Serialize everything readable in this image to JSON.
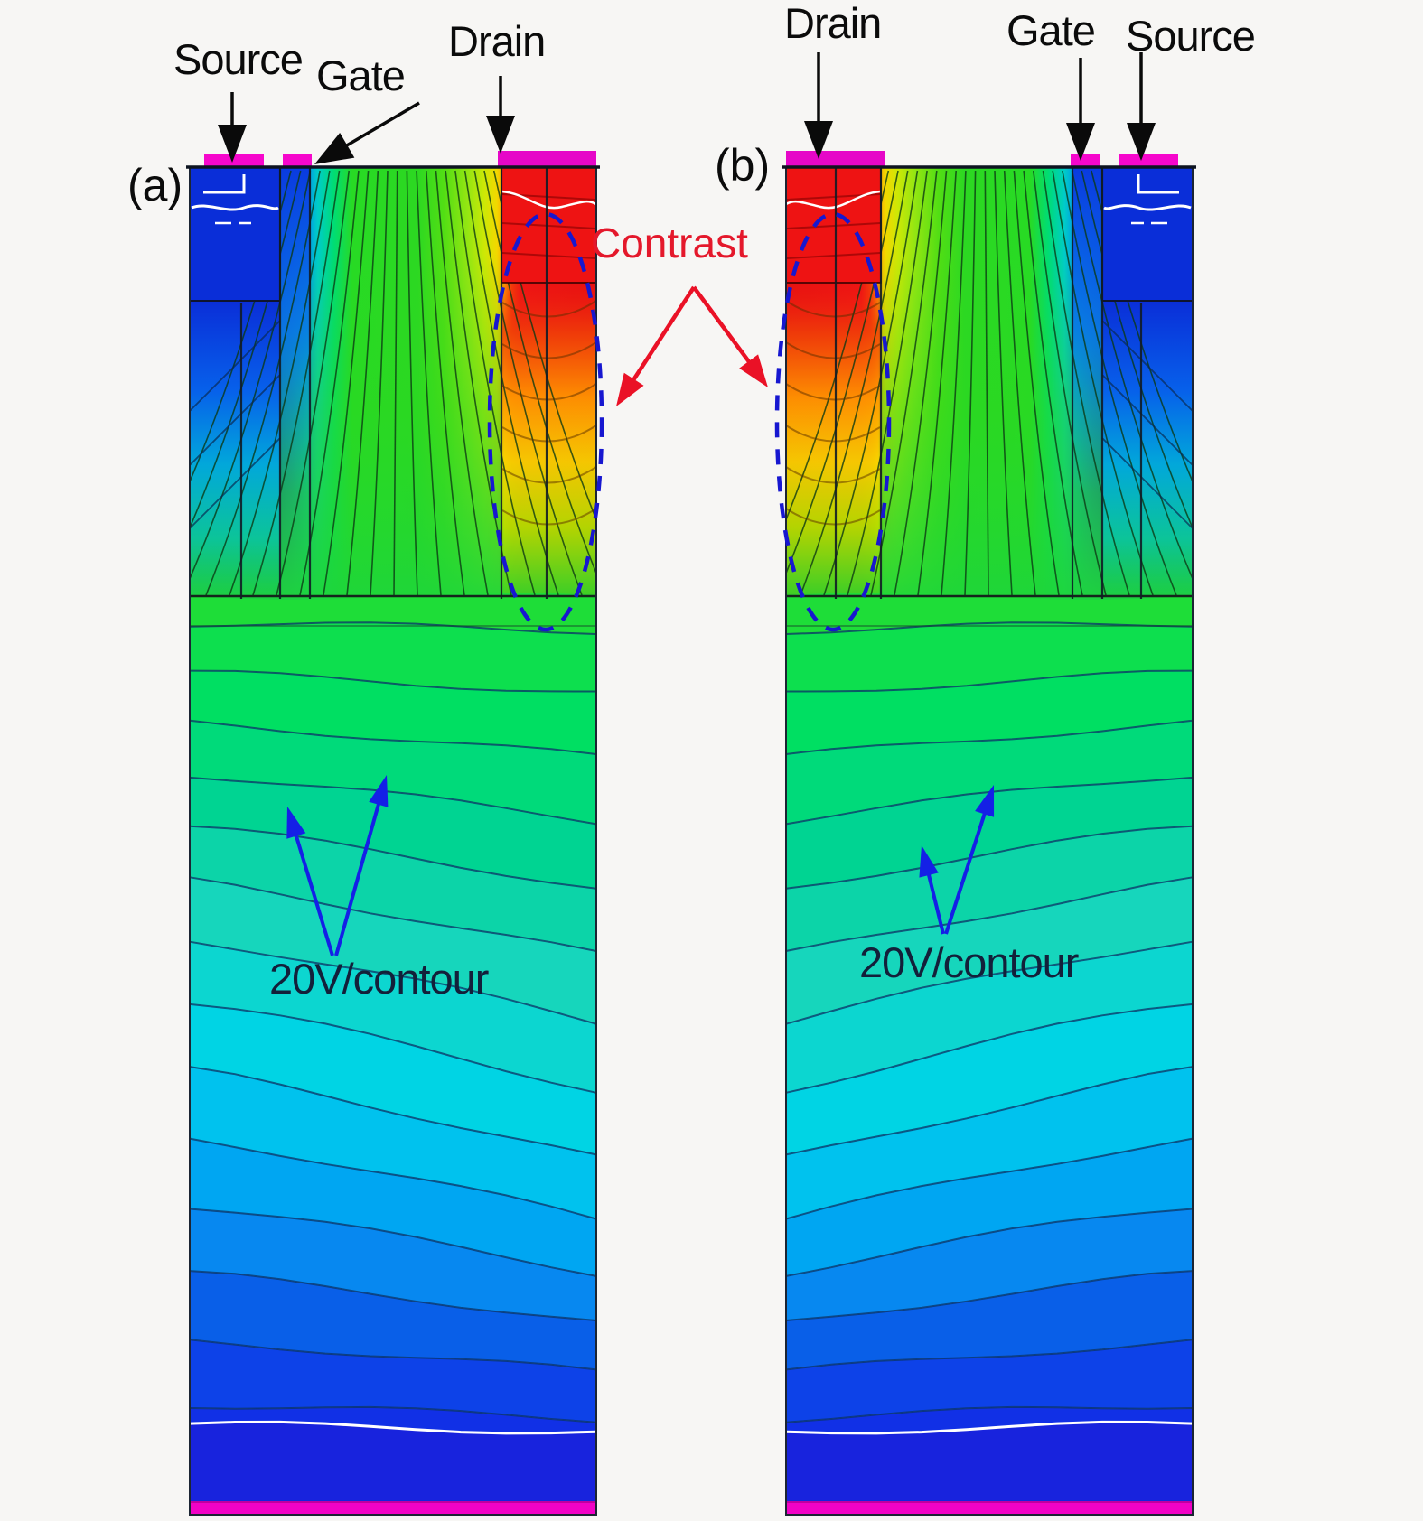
{
  "figure": {
    "description": "Simulated equipotential contour plots of two mirrored high-voltage MOS device cross-sections",
    "background": "#f7f6f4"
  },
  "labels": {
    "panel_a": "(a)",
    "panel_b": "(b)",
    "source_a": "Source",
    "gate_a": "Gate",
    "drain_a": "Drain",
    "drain_b": "Drain",
    "gate_b": "Gate",
    "source_b": "Source",
    "contour_a": "20V/contour",
    "contour_b": "20V/contour",
    "contrast": "Contrast"
  },
  "colors": {
    "contrast_text": "#e4182b",
    "contrast_arrow": "#ea1126",
    "contour_arrow": "#1420e6",
    "electrode_arrow": "#0a0a0a",
    "contrast_ellipse": "#1717d0",
    "contact_magenta": "#f607cc",
    "bottom_bar_magenta": "#f202c6",
    "source_block": "#0a2ed8",
    "drain_block": "#ee1313",
    "panel_border": "#1c2533",
    "fan_line": "#0c3a14",
    "depth_line": "#0a3566",
    "top_gradient": [
      [
        0.0,
        "#0a2ed8"
      ],
      [
        0.22,
        "#0a2ed8"
      ],
      [
        0.25,
        "#0d52e8"
      ],
      [
        0.285,
        "#0090ea"
      ],
      [
        0.315,
        "#00ccc8"
      ],
      [
        0.355,
        "#00dc74"
      ],
      [
        0.4,
        "#28da24"
      ],
      [
        0.56,
        "#2cd822"
      ],
      [
        0.625,
        "#52de14"
      ],
      [
        0.685,
        "#96e612"
      ],
      [
        0.725,
        "#cce806"
      ],
      [
        0.755,
        "#f2d800"
      ],
      [
        0.775,
        "#ffa000"
      ],
      [
        0.792,
        "#f44008"
      ],
      [
        0.815,
        "#ee1414"
      ],
      [
        1.0,
        "#e61010"
      ]
    ],
    "depth_bands": [
      "#1edd38",
      "#0ddf4e",
      "#00df62",
      "#00da7a",
      "#00d492",
      "#0cd4a8",
      "#16d6bc",
      "#0cd6d0",
      "#00d4e4",
      "#00c2ee",
      "#00a6f2",
      "#0788f0",
      "#095fe8",
      "#0d42e8",
      "#1130e6",
      "#1823dd"
    ]
  }
}
